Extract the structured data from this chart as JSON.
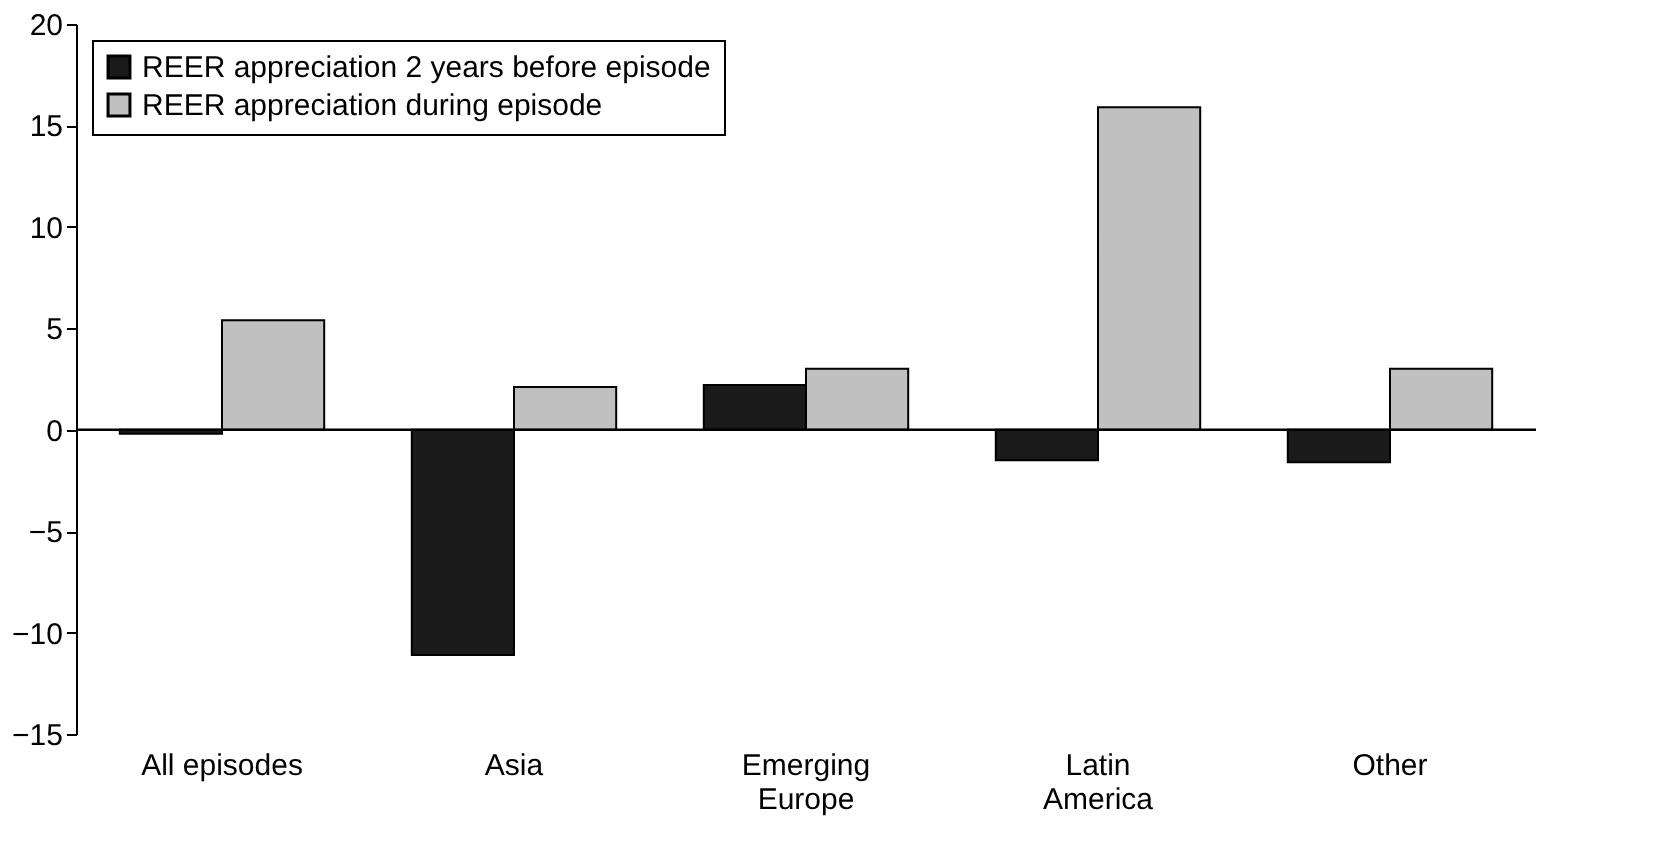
{
  "chart_data": {
    "type": "bar",
    "categories": [
      "All episodes",
      "Asia",
      "Emerging Europe",
      "Latin America",
      "Other"
    ],
    "series": [
      {
        "name": "REER appreciation 2 years before episode",
        "color": "#1a1a1a",
        "values": [
          -0.2,
          -11.1,
          2.2,
          -1.5,
          -1.6
        ]
      },
      {
        "name": "REER appreciation during episode",
        "color": "#c0c0c0",
        "values": [
          5.4,
          2.1,
          3.0,
          15.9,
          3.0
        ]
      }
    ],
    "ylim": [
      -15,
      20
    ],
    "yticks": [
      -15,
      -10,
      -5,
      0,
      5,
      10,
      15,
      20
    ],
    "ref_lines": [
      {
        "axis": "y",
        "value": 0,
        "color": "#000000"
      }
    ],
    "grid": false,
    "legend": "top left"
  }
}
